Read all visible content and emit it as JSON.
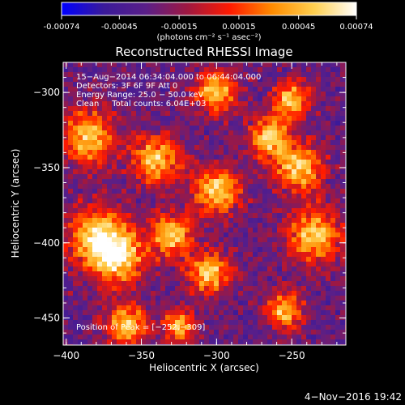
{
  "colorbar": {
    "tick_labels": [
      "-0.00074",
      "-0.00045",
      "-0.00015",
      "0.00015",
      "0.00045",
      "0.00074"
    ],
    "tick_values": [
      -0.00074,
      -0.00045,
      -0.00015,
      0.00015,
      0.00045,
      0.00074
    ],
    "range": [
      -0.00074,
      0.00074
    ],
    "unit_label": "(photons cm⁻² s⁻¹ asec⁻²)",
    "colormap": [
      "#0000ff",
      "#3a1a9a",
      "#5a1f88",
      "#a01840",
      "#ff1a00",
      "#ff8c00",
      "#ffd050",
      "#ffffff"
    ]
  },
  "chart_data": {
    "type": "heatmap",
    "title": "Reconstructed RHESSI Image",
    "xlabel": "Heliocentric X (arcsec)",
    "ylabel": "Heliocentric Y (arcsec)",
    "xlim": [
      -402,
      -214
    ],
    "ylim": [
      -468,
      -280
    ],
    "x_ticks": [
      -400,
      -350,
      -300,
      -250
    ],
    "x_tick_labels": [
      "−400",
      "−350",
      "−300",
      "−250"
    ],
    "y_ticks": [
      -300,
      -350,
      -400,
      -450
    ],
    "y_tick_labels": [
      "−300",
      "−350",
      "−400",
      "−450"
    ],
    "annotations": [
      "15−Aug−2014 06:34:04.000 to 06:44:04.000",
      "Detectors: 3F 6F 9F  Att 0",
      "Energy Range: 25.0 − 50.0 keV",
      "Clean     Total counts: 6.04E+03"
    ],
    "peak_label": "Position of Peak = [−252,−309]",
    "peak_position": [
      -252,
      -309
    ]
  },
  "footer": {
    "timestamp": "4−Nov−2016 19:42"
  }
}
